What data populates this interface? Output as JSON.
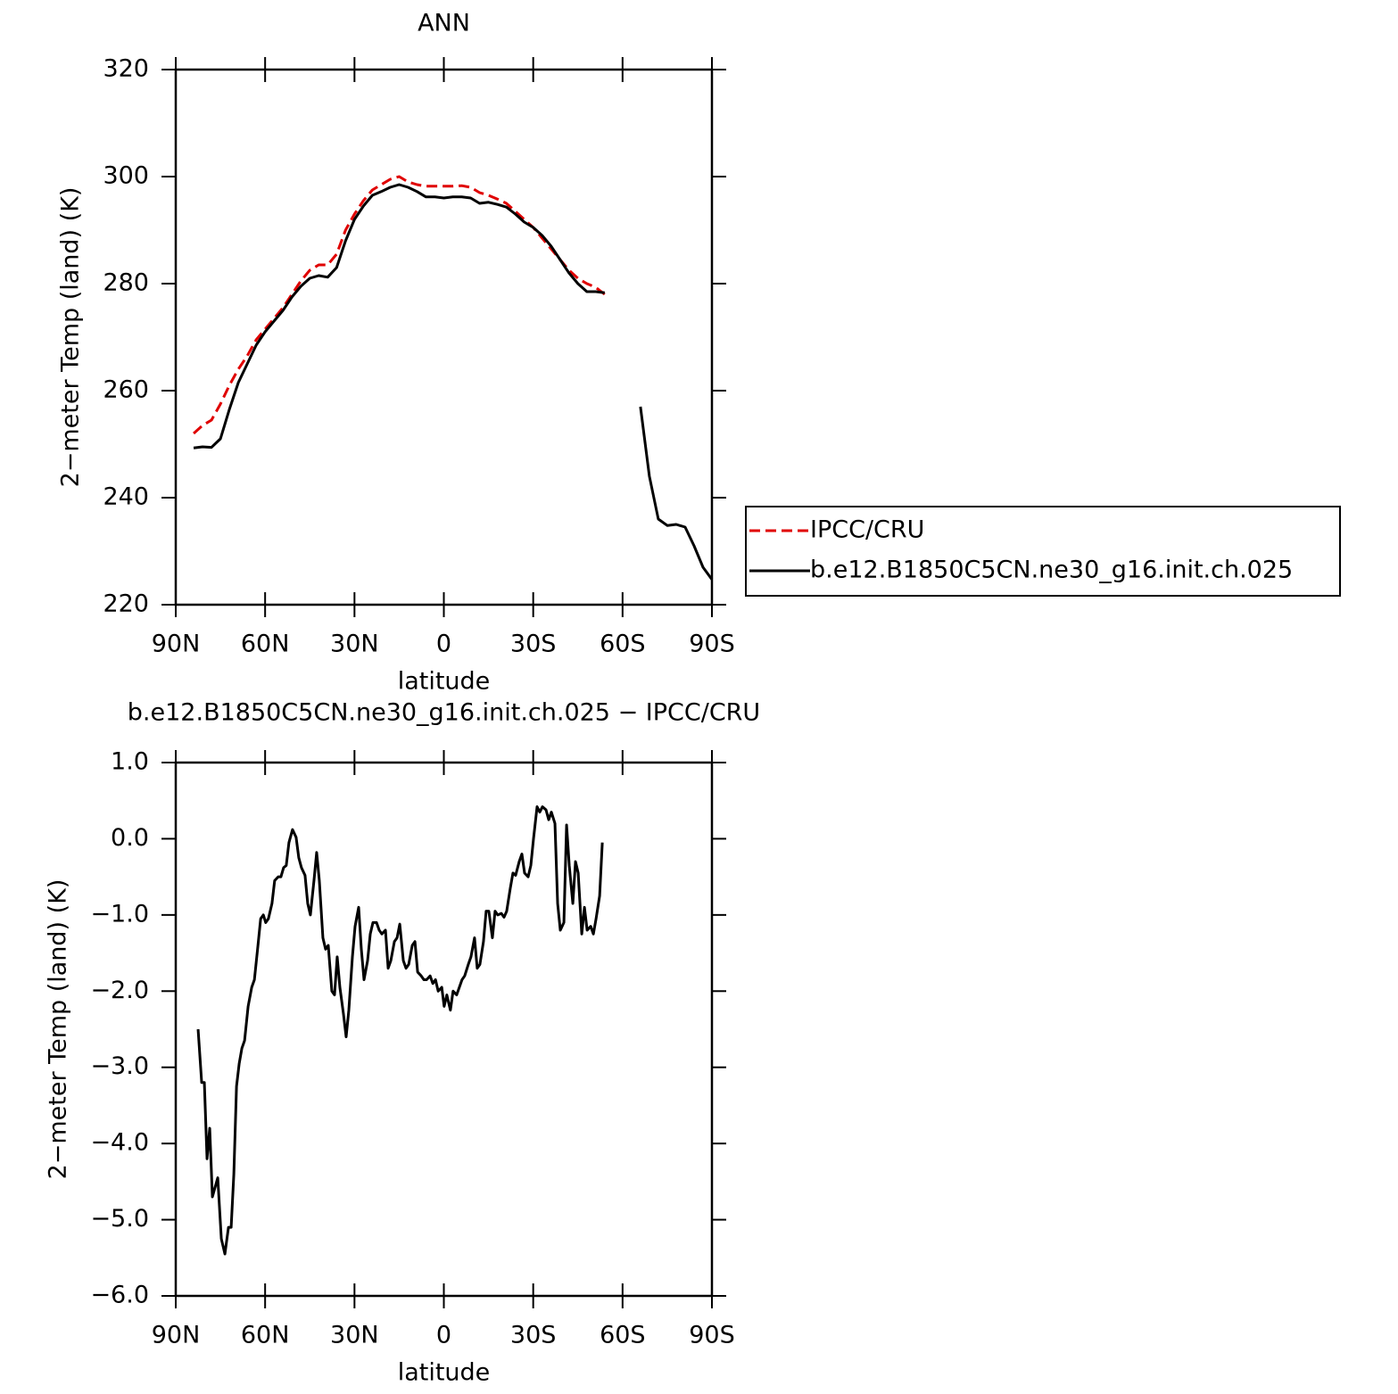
{
  "chart_data": [
    {
      "type": "line",
      "title": "ANN",
      "xlabel": "latitude",
      "ylabel": "2−meter Temp (land) (K)",
      "xlim": [
        90,
        -90
      ],
      "xticks": [
        {
          "value": 90,
          "label": "90N"
        },
        {
          "value": 60,
          "label": "60N"
        },
        {
          "value": 30,
          "label": "30N"
        },
        0,
        {
          "value": -30,
          "label": "30S"
        },
        {
          "value": -60,
          "label": "60S"
        },
        {
          "value": -90,
          "label": "90S"
        }
      ],
      "ylim": [
        220,
        320
      ],
      "yticks": [
        220,
        240,
        260,
        280,
        300,
        320
      ],
      "x": [
        84,
        81,
        78,
        75,
        72,
        69,
        66,
        63,
        60,
        57,
        54,
        51,
        48,
        45,
        42,
        39,
        36,
        33,
        30,
        27,
        24,
        21,
        18,
        15,
        12,
        9,
        6,
        3,
        0,
        -3,
        -6,
        -9,
        -12,
        -15,
        -18,
        -21,
        -24,
        -27,
        -30,
        -33,
        -36,
        -39,
        -42,
        -45,
        -48,
        -51,
        -54,
        -57,
        -60,
        -63,
        -66,
        -69,
        -72,
        -75,
        -78,
        -81,
        -84,
        -87,
        -90
      ],
      "series": [
        {
          "name": "IPCC/CRU",
          "color": "#e00000",
          "line_style": "dashed",
          "values": [
            252,
            253.5,
            254.5,
            257.5,
            261,
            264,
            266.5,
            269.5,
            271.5,
            273.5,
            275.5,
            278,
            280.5,
            282.5,
            283.5,
            283.5,
            285.5,
            290,
            293,
            295.5,
            297.5,
            298.5,
            299.5,
            300,
            299,
            298.5,
            298.2,
            298.2,
            298.2,
            298.2,
            298.3,
            298,
            297,
            296.5,
            295.8,
            295,
            293.5,
            292,
            290.5,
            288.5,
            286.5,
            284.5,
            282.5,
            281,
            280,
            279.3,
            278,
            null,
            null,
            null,
            null,
            null,
            null,
            null,
            null,
            null,
            null,
            null,
            null
          ]
        },
        {
          "name": "b.e12.B1850C5CN.ne30_g16.init.ch.025",
          "color": "#000000",
          "line_style": "solid",
          "values": [
            249.3,
            249.5,
            249.4,
            251,
            256.5,
            261.5,
            265,
            268.5,
            271,
            273,
            275,
            277.5,
            279.5,
            281,
            281.5,
            281.2,
            283,
            288,
            292,
            294.5,
            296.5,
            297.2,
            298,
            298.5,
            298,
            297.2,
            296.2,
            296.2,
            296,
            296.2,
            296.2,
            296,
            295,
            295.2,
            294.8,
            294.3,
            293,
            291.5,
            290.5,
            289,
            287,
            284.5,
            282,
            280,
            278.5,
            278.5,
            278.3,
            null,
            null,
            null,
            257,
            244,
            236,
            234.8,
            235,
            234.5,
            231,
            227,
            224.7
          ]
        }
      ]
    },
    {
      "type": "line",
      "title": "b.e12.B1850C5CN.ne30_g16.init.ch.025 − IPCC/CRU",
      "xlabel": "latitude",
      "ylabel": "2−meter Temp (land) (K)",
      "xlim": [
        90,
        -90
      ],
      "xticks": [
        {
          "value": 90,
          "label": "90N"
        },
        {
          "value": 60,
          "label": "60N"
        },
        {
          "value": 30,
          "label": "30N"
        },
        0,
        {
          "value": -30,
          "label": "30S"
        },
        {
          "value": -60,
          "label": "60S"
        },
        {
          "value": -90,
          "label": "90S"
        }
      ],
      "ylim": [
        -6,
        1
      ],
      "yticks": [
        {
          "value": -6,
          "label": "−6.0"
        },
        {
          "value": -5,
          "label": "−5.0"
        },
        {
          "value": -4,
          "label": "−4.0"
        },
        {
          "value": -3,
          "label": "−3.0"
        },
        {
          "value": -2,
          "label": "−2.0"
        },
        {
          "value": -1,
          "label": "−1.0"
        },
        {
          "value": 0,
          "label": "0.0"
        },
        {
          "value": 1,
          "label": "1.0"
        }
      ],
      "x": [
        82.5,
        81.3,
        80.4,
        79.5,
        78.6,
        77.7,
        75.9,
        74.7,
        73.5,
        72.3,
        71.4,
        70.5,
        69.6,
        68.7,
        67.8,
        66.9,
        65.7,
        64.5,
        63.6,
        62.4,
        61.5,
        60.6,
        59.8,
        58.9,
        57.7,
        56.8,
        55.6,
        54.7,
        53.8,
        52.9,
        52.0,
        50.8,
        49.6,
        48.7,
        47.8,
        46.6,
        45.7,
        44.8,
        43.6,
        42.7,
        41.8,
        40.6,
        39.7,
        38.8,
        37.6,
        36.7,
        35.8,
        34.9,
        33.7,
        32.8,
        31.9,
        30.7,
        29.8,
        28.6,
        27.7,
        26.8,
        25.6,
        24.7,
        23.8,
        22.6,
        21.7,
        20.8,
        19.6,
        18.7,
        17.8,
        16.6,
        15.7,
        14.8,
        13.6,
        12.7,
        11.8,
        10.6,
        9.7,
        8.8,
        7.6,
        6.7,
        5.8,
        4.6,
        3.7,
        2.8,
        1.9,
        0.7,
        -0.1,
        -1.0,
        -2.2,
        -3.1,
        -4.3,
        -5.2,
        -6.1,
        -7.0,
        -8.2,
        -9.1,
        -10.3,
        -11.2,
        -12.1,
        -13.3,
        -14.2,
        -15.1,
        -16.3,
        -17.2,
        -18.1,
        -19.3,
        -20.2,
        -21.1,
        -22.3,
        -23.2,
        -24.1,
        -25.3,
        -26.2,
        -27.1,
        -28.3,
        -29.2,
        -30.1,
        -31.3,
        -32.2,
        -33.1,
        -34.3,
        -35.2,
        -36.1,
        -37.3,
        -38.2,
        -39.1,
        -40.3,
        -41.2,
        -42.1,
        -43.3,
        -44.2,
        -45.1,
        -46.3,
        -47.2,
        -48.1,
        -49.3,
        -50.2,
        -51.1,
        -52.3,
        -53.2
      ],
      "series": [
        {
          "color": "#000000",
          "line_style": "solid",
          "values": [
            -2.5,
            -3.2,
            -3.2,
            -4.2,
            -3.8,
            -4.7,
            -4.45,
            -5.25,
            -5.45,
            -5.1,
            -5.1,
            -4.4,
            -3.25,
            -2.95,
            -2.75,
            -2.65,
            -2.2,
            -1.95,
            -1.85,
            -1.4,
            -1.05,
            -1.0,
            -1.1,
            -1.05,
            -0.85,
            -0.55,
            -0.5,
            -0.5,
            -0.38,
            -0.35,
            -0.05,
            0.12,
            0.02,
            -0.25,
            -0.38,
            -0.48,
            -0.85,
            -1.0,
            -0.55,
            -0.18,
            -0.55,
            -1.3,
            -1.45,
            -1.4,
            -2.0,
            -2.05,
            -1.55,
            -1.95,
            -2.3,
            -2.6,
            -2.25,
            -1.55,
            -1.15,
            -0.9,
            -1.45,
            -1.85,
            -1.6,
            -1.25,
            -1.1,
            -1.1,
            -1.2,
            -1.25,
            -1.2,
            -1.7,
            -1.6,
            -1.35,
            -1.3,
            -1.12,
            -1.6,
            -1.7,
            -1.65,
            -1.4,
            -1.35,
            -1.75,
            -1.8,
            -1.85,
            -1.85,
            -1.8,
            -1.9,
            -1.85,
            -2.0,
            -1.95,
            -2.2,
            -2.05,
            -2.25,
            -2.0,
            -2.05,
            -1.95,
            -1.85,
            -1.8,
            -1.65,
            -1.55,
            -1.3,
            -1.7,
            -1.65,
            -1.35,
            -0.95,
            -0.95,
            -1.3,
            -0.95,
            -1.0,
            -0.98,
            -1.03,
            -0.95,
            -0.65,
            -0.45,
            -0.48,
            -0.3,
            -0.2,
            -0.45,
            -0.5,
            -0.35,
            0.0,
            0.42,
            0.35,
            0.42,
            0.38,
            0.25,
            0.35,
            0.2,
            -0.85,
            -1.2,
            -1.1,
            0.18,
            -0.35,
            -0.85,
            -0.3,
            -0.45,
            -1.25,
            -0.9,
            -1.2,
            -1.15,
            -1.25,
            -1.05,
            -0.75,
            -0.05
          ]
        }
      ]
    }
  ]
}
